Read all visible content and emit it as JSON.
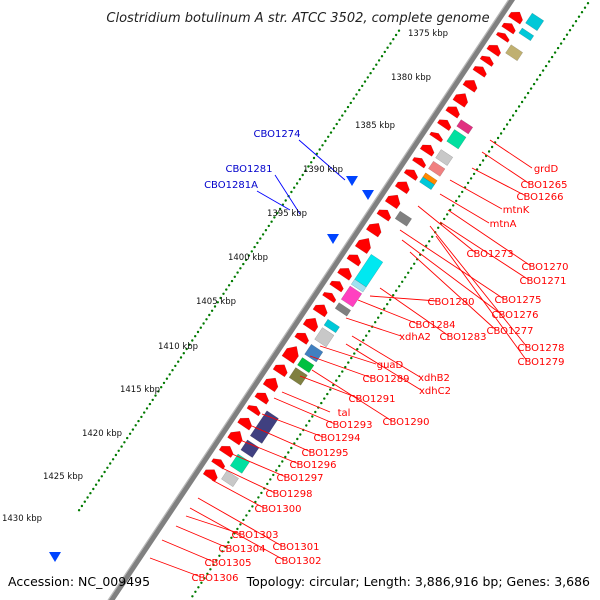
{
  "title": "Clostridium botulinum A str. ATCC 3502, complete genome",
  "footer": {
    "accession": "Accession: NC_009495",
    "stats": "Topology: circular; Length: 3,886,916 bp; Genes: 3,686"
  },
  "colors": {
    "backbone": "#808080",
    "forward_gene": "#ff0000",
    "reverse_gene_label": "#0000cc",
    "tick_dots": "#007a00",
    "leader_forward": "#ff0000",
    "leader_reverse": "#0000ff"
  },
  "scale": {
    "unit": "kbp",
    "ticks": [
      "1375 kbp",
      "1380 kbp",
      "1385 kbp",
      "1390 kbp",
      "1395 kbp",
      "1400 kbp",
      "1405 kbp",
      "1410 kbp",
      "1415 kbp",
      "1420 kbp",
      "1425 kbp",
      "1430 kbp"
    ]
  },
  "reverse_labels": [
    "CBO1274",
    "CBO1281",
    "CBO1281A"
  ],
  "forward_labels": [
    "grdD",
    "CBO1265",
    "CBO1266",
    "mtnK",
    "mtnA",
    "CBO1273",
    "CBO1270",
    "CBO1271",
    "CBO1275",
    "CBO1276",
    "CBO1277",
    "CBO1278",
    "CBO1279",
    "CBO1280",
    "CBO1284",
    "CBO1283",
    "xdhA2",
    "guaD",
    "CBO1289",
    "xdhB2",
    "xdhC2",
    "CBO1291",
    "tal",
    "CBO1290",
    "CBO1293",
    "CBO1294",
    "CBO1295",
    "CBO1296",
    "CBO1297",
    "CBO1298",
    "CBO1300",
    "CBO1303",
    "CBO1304",
    "CBO1301",
    "CBO1305",
    "CBO1302",
    "CBO1306"
  ]
}
